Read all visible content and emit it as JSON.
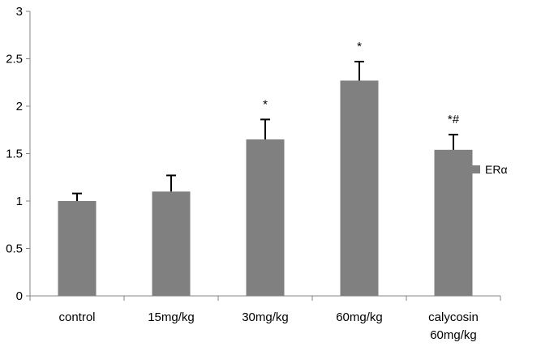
{
  "chart_data": {
    "type": "bar",
    "categories": [
      [
        "control"
      ],
      [
        "15mg/kg"
      ],
      [
        "30mg/kg"
      ],
      [
        "60mg/kg"
      ],
      [
        "calycosin",
        "60mg/kg"
      ]
    ],
    "series": [
      {
        "name": "ERα",
        "values": [
          1.0,
          1.1,
          1.65,
          2.27,
          1.54
        ],
        "errors": [
          0.08,
          0.17,
          0.21,
          0.2,
          0.16
        ],
        "color": "#808080"
      }
    ],
    "annotations": [
      "",
      "",
      "*",
      "*",
      "*#"
    ],
    "ylim": [
      0,
      3
    ],
    "yticks": [
      0,
      0.5,
      1,
      1.5,
      2,
      2.5,
      3
    ],
    "ytick_labels": [
      "0",
      "0.5",
      "1",
      "1.5",
      "2",
      "2.5",
      "3"
    ],
    "title": "",
    "xlabel": "",
    "ylabel": "",
    "grid": false,
    "legend_position": "right"
  }
}
